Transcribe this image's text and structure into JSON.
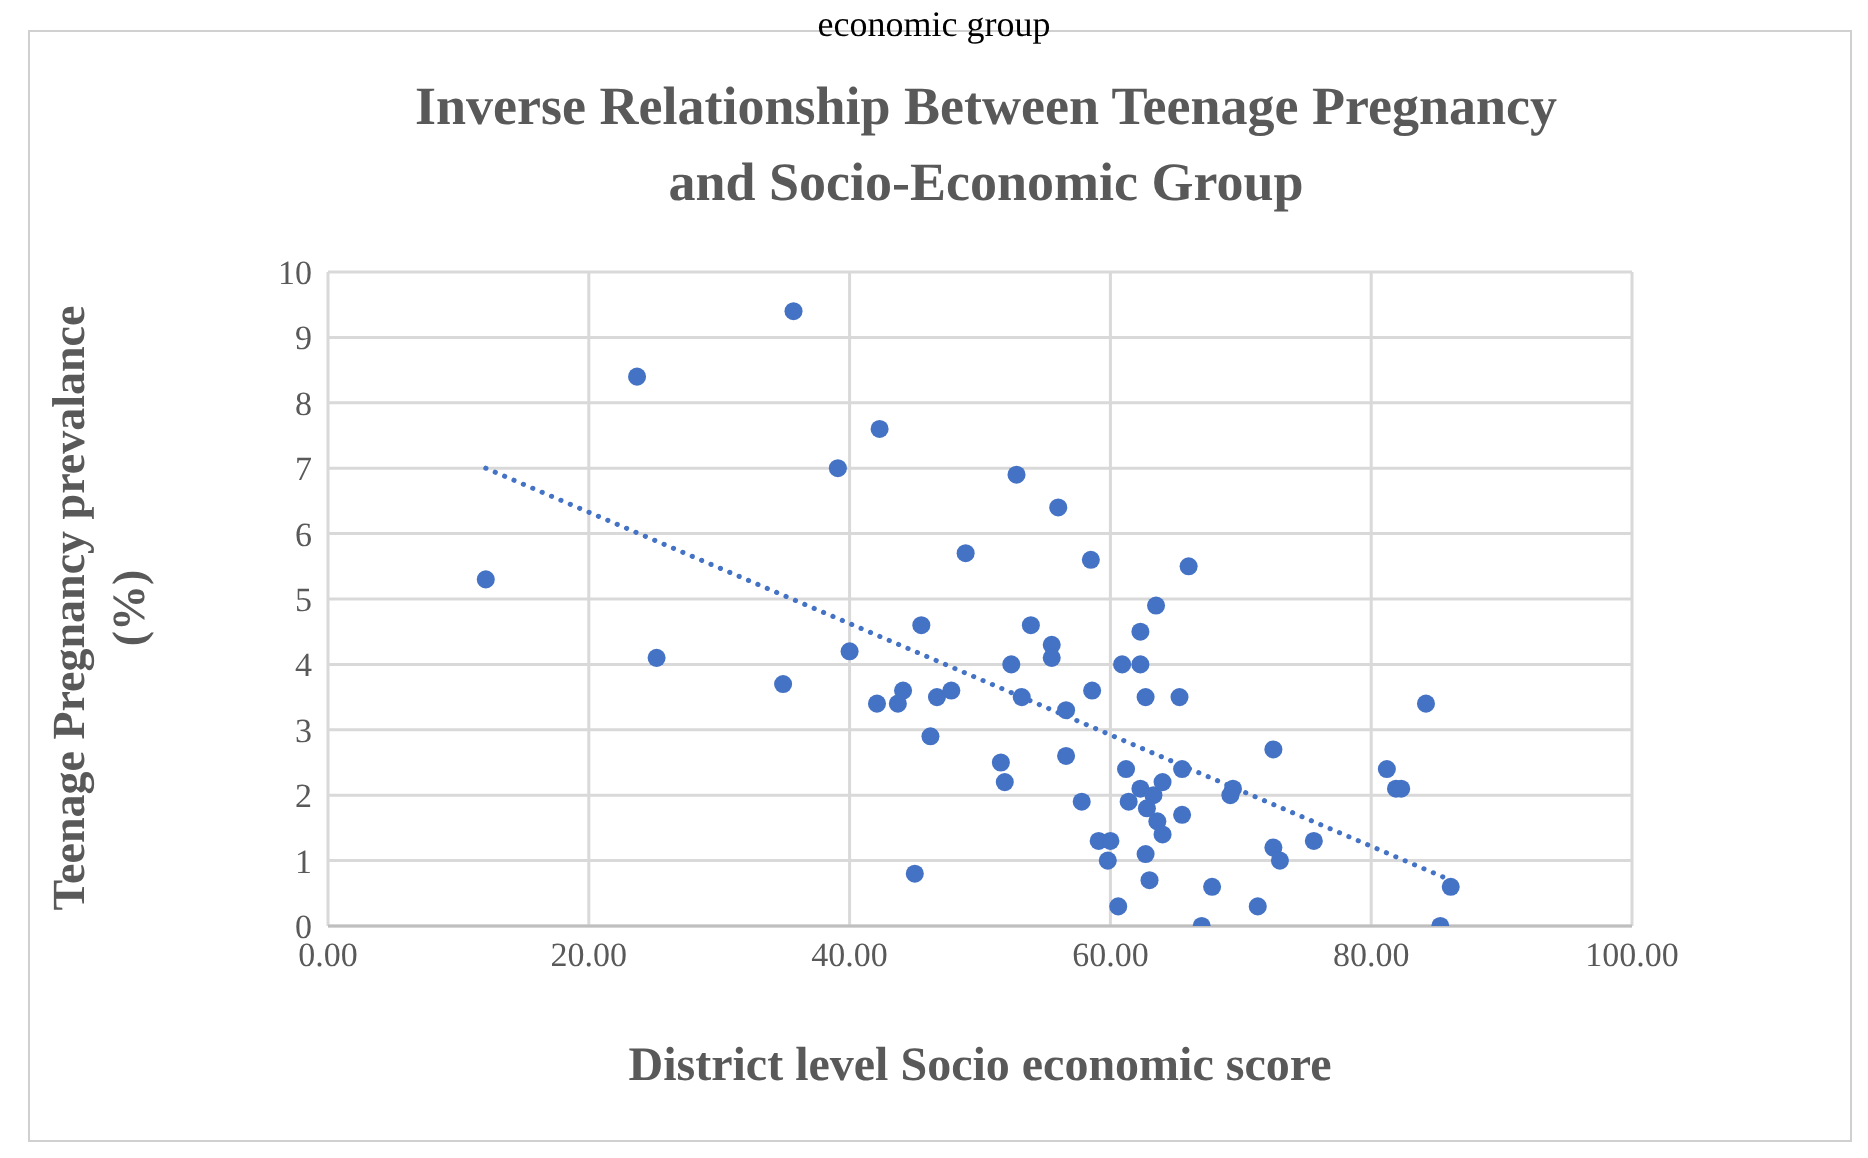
{
  "chart_data": {
    "type": "scatter",
    "title": "Inverse Relationship Between Teenage Pregnancy and Socio-Economic Group",
    "xlabel": "District level Socio economic score",
    "ylabel": "Teenage Pregnancy prevalance (%)",
    "annotations": [
      "economic group"
    ],
    "xlim": [
      0,
      100
    ],
    "xticks": [
      {
        "value": 0,
        "label": "0.00"
      },
      {
        "value": 20,
        "label": "20.00"
      },
      {
        "value": 40,
        "label": "40.00"
      },
      {
        "value": 60,
        "label": "60.00"
      },
      {
        "value": 80,
        "label": "80.00"
      },
      {
        "value": 100,
        "label": "100.00"
      }
    ],
    "ylim": [
      0,
      10
    ],
    "yticks": [
      0,
      1,
      2,
      3,
      4,
      5,
      6,
      7,
      8,
      9,
      10
    ],
    "grid": true,
    "series": [
      {
        "marker": "circle",
        "color": "#4472c4",
        "x": [
          12.1,
          23.7,
          25.2,
          35.7,
          34.9,
          39.1,
          40.0,
          42.3,
          52.8,
          56.0,
          48.9,
          58.5,
          66.0,
          63.5,
          62.3,
          45.5,
          53.9,
          55.5,
          55.5,
          52.4,
          60.9,
          62.3,
          42.1,
          43.7,
          44.1,
          46.7,
          47.8,
          53.2,
          56.6,
          58.6,
          62.7,
          65.3,
          46.2,
          51.6,
          51.9,
          56.6,
          57.8,
          45.0,
          59.1,
          60.0,
          59.8,
          60.6,
          62.7,
          63.0,
          67.0,
          67.8,
          71.3,
          72.5,
          73.0,
          72.5,
          69.4,
          69.2,
          65.5,
          65.5,
          61.2,
          61.4,
          62.3,
          63.3,
          64.0,
          63.6,
          64.0,
          62.8,
          84.2,
          81.2,
          81.9,
          82.3,
          86.1,
          85.3,
          75.6
        ],
        "values": [
          5.3,
          8.4,
          4.1,
          9.4,
          3.7,
          7.0,
          4.2,
          7.6,
          6.9,
          6.4,
          5.7,
          5.6,
          5.5,
          4.9,
          4.5,
          4.6,
          4.6,
          4.3,
          4.1,
          4.0,
          4.0,
          4.0,
          3.4,
          3.4,
          3.6,
          3.5,
          3.6,
          3.5,
          3.3,
          3.6,
          3.5,
          3.5,
          2.9,
          2.5,
          2.2,
          2.6,
          1.9,
          0.8,
          1.3,
          1.3,
          1.0,
          0.3,
          1.1,
          0.7,
          0.0,
          0.6,
          0.3,
          1.2,
          1.0,
          2.7,
          2.1,
          2.0,
          1.7,
          2.4,
          2.4,
          1.9,
          2.1,
          2.0,
          2.2,
          1.6,
          1.4,
          1.8,
          3.4,
          2.4,
          2.1,
          2.1,
          0.6,
          0.0,
          1.3
        ]
      },
      {
        "type": "line",
        "marker": "none",
        "line_style": "dotted",
        "color": "#4472c4",
        "x": [
          12.1,
          86.1
        ],
        "values": [
          7.0,
          0.7
        ]
      }
    ]
  }
}
